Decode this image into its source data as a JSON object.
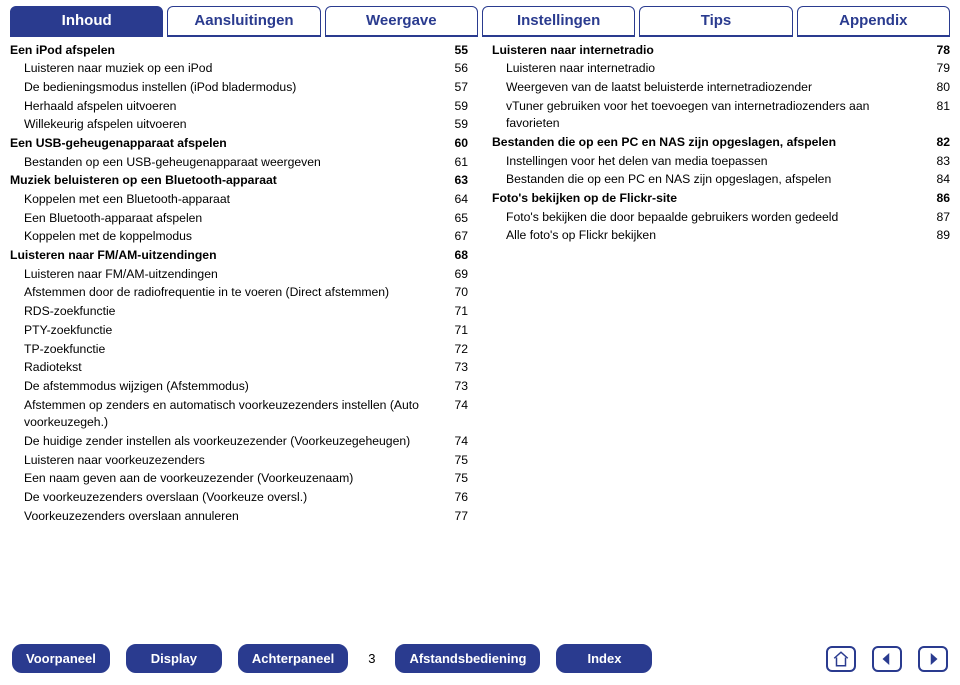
{
  "colors": {
    "accent": "#2a3b8f",
    "bg": "#ffffff"
  },
  "topTabs": [
    {
      "label": "Inhoud",
      "active": true
    },
    {
      "label": "Aansluitingen",
      "active": false
    },
    {
      "label": "Weergave",
      "active": false
    },
    {
      "label": "Instellingen",
      "active": false
    },
    {
      "label": "Tips",
      "active": false
    },
    {
      "label": "Appendix",
      "active": false
    }
  ],
  "leftCol": [
    {
      "label": "Een iPod afspelen",
      "page": "55",
      "bold": true,
      "indent": 0
    },
    {
      "label": "Luisteren naar muziek op een iPod",
      "page": "56",
      "bold": false,
      "indent": 1
    },
    {
      "label": "De bedieningsmodus instellen (iPod bladermodus)",
      "page": "57",
      "bold": false,
      "indent": 1
    },
    {
      "label": "Herhaald afspelen uitvoeren",
      "page": "59",
      "bold": false,
      "indent": 1
    },
    {
      "label": "Willekeurig afspelen uitvoeren",
      "page": "59",
      "bold": false,
      "indent": 1
    },
    {
      "label": "Een USB-geheugenapparaat afspelen",
      "page": "60",
      "bold": true,
      "indent": 0
    },
    {
      "label": "Bestanden op een USB-geheugenapparaat weergeven",
      "page": "61",
      "bold": false,
      "indent": 1
    },
    {
      "label": "Muziek beluisteren op een Bluetooth-apparaat",
      "page": "63",
      "bold": true,
      "indent": 0
    },
    {
      "label": "Koppelen met een Bluetooth-apparaat",
      "page": "64",
      "bold": false,
      "indent": 1
    },
    {
      "label": "Een Bluetooth-apparaat afspelen",
      "page": "65",
      "bold": false,
      "indent": 1
    },
    {
      "label": "Koppelen met de koppelmodus",
      "page": "67",
      "bold": false,
      "indent": 1
    },
    {
      "label": "Luisteren naar FM/AM-uitzendingen",
      "page": "68",
      "bold": true,
      "indent": 0
    },
    {
      "label": "Luisteren naar FM/AM-uitzendingen",
      "page": "69",
      "bold": false,
      "indent": 1
    },
    {
      "label": "Afstemmen door de radiofrequentie in te voeren (Direct afstemmen)",
      "page": "70",
      "bold": false,
      "indent": 1
    },
    {
      "label": "RDS-zoekfunctie",
      "page": "71",
      "bold": false,
      "indent": 1
    },
    {
      "label": "PTY-zoekfunctie",
      "page": "71",
      "bold": false,
      "indent": 1
    },
    {
      "label": "TP-zoekfunctie",
      "page": "72",
      "bold": false,
      "indent": 1
    },
    {
      "label": "Radiotekst",
      "page": "73",
      "bold": false,
      "indent": 1
    },
    {
      "label": "De afstemmodus wijzigen (Afstemmodus)",
      "page": "73",
      "bold": false,
      "indent": 1
    },
    {
      "label": "Afstemmen op zenders en automatisch voorkeuzezenders instellen (Auto voorkeuzegeh.)",
      "page": "74",
      "bold": false,
      "indent": 1
    },
    {
      "label": "De huidige zender instellen als voorkeuzezender (Voorkeuzegeheugen)",
      "page": "74",
      "bold": false,
      "indent": 1
    },
    {
      "label": "Luisteren naar voorkeuzezenders",
      "page": "75",
      "bold": false,
      "indent": 1
    },
    {
      "label": "Een naam geven aan de voorkeuzezender (Voorkeuzenaam)",
      "page": "75",
      "bold": false,
      "indent": 1
    },
    {
      "label": "De voorkeuzezenders overslaan (Voorkeuze oversl.)",
      "page": "76",
      "bold": false,
      "indent": 1
    },
    {
      "label": "Voorkeuzezenders overslaan annuleren",
      "page": "77",
      "bold": false,
      "indent": 1
    }
  ],
  "rightCol": [
    {
      "label": "Luisteren naar internetradio",
      "page": "78",
      "bold": true,
      "indent": 0
    },
    {
      "label": "Luisteren naar internetradio",
      "page": "79",
      "bold": false,
      "indent": 1
    },
    {
      "label": "Weergeven van de laatst beluisterde internetradiozender",
      "page": "80",
      "bold": false,
      "indent": 1
    },
    {
      "label": "vTuner gebruiken voor het toevoegen van internetradiozenders aan favorieten",
      "page": "81",
      "bold": false,
      "indent": 1
    },
    {
      "label": "Bestanden die op een PC en NAS zijn opgeslagen, afspelen",
      "page": "82",
      "bold": true,
      "indent": 0
    },
    {
      "label": "Instellingen voor het delen van media toepassen",
      "page": "83",
      "bold": false,
      "indent": 1
    },
    {
      "label": "Bestanden die op een PC en NAS zijn opgeslagen, afspelen",
      "page": "84",
      "bold": false,
      "indent": 1
    },
    {
      "label": "Foto's bekijken op de Flickr-site",
      "page": "86",
      "bold": true,
      "indent": 0
    },
    {
      "label": "Foto's bekijken die door bepaalde gebruikers worden gedeeld",
      "page": "87",
      "bold": false,
      "indent": 1
    },
    {
      "label": "Alle foto's op Flickr bekijken",
      "page": "89",
      "bold": false,
      "indent": 1
    }
  ],
  "bottomNav": {
    "buttons": [
      "Voorpaneel",
      "Display",
      "Achterpaneel"
    ],
    "pageNumber": "3",
    "buttons2": [
      "Afstandsbediening",
      "Index"
    ]
  }
}
